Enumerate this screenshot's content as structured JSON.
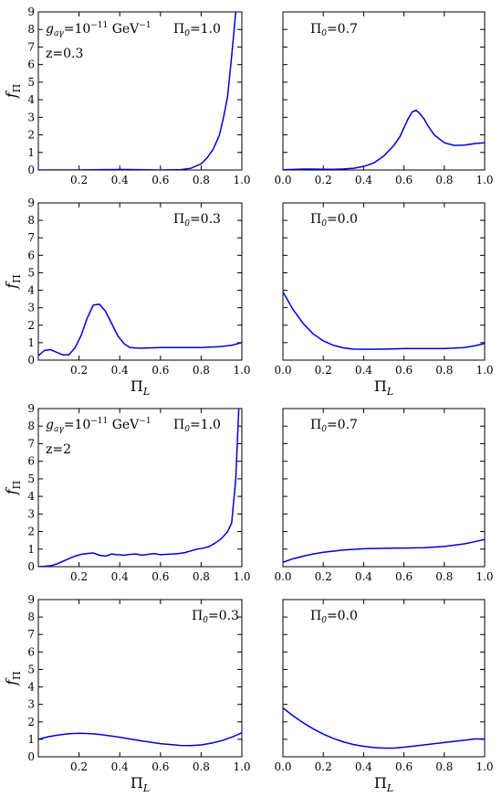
{
  "chart_data": [
    {
      "type": "line",
      "panel": "top-left",
      "ylabel": "f_Π",
      "xlabel": "",
      "xlim": [
        0,
        1
      ],
      "ylim": [
        0,
        9
      ],
      "x_ticks": [
        "0.2",
        "0.4",
        "0.6",
        "0.8",
        "1.0"
      ],
      "y_ticks": [
        "0",
        "1",
        "2",
        "3",
        "4",
        "5",
        "6",
        "7",
        "8",
        "9"
      ],
      "annotations": [
        {
          "text_main": "g",
          "text_sub": "aγ",
          "text_mid": "=10",
          "text_sup": "−11",
          "text_end": " GeV",
          "text_sup2": "−1"
        },
        {
          "text": "z=0.3"
        },
        {
          "text_main": "Π",
          "text_sub": "0",
          "text_end": "=1.0"
        }
      ],
      "series": [
        {
          "x": [
            0.0,
            0.1,
            0.2,
            0.3,
            0.4,
            0.5,
            0.6,
            0.7,
            0.75,
            0.8,
            0.83,
            0.86,
            0.89,
            0.91,
            0.93,
            0.95,
            0.97
          ],
          "values": [
            0.0,
            0.0,
            0.0,
            0.02,
            0.03,
            0.02,
            0.0,
            0.02,
            0.1,
            0.35,
            0.7,
            1.2,
            2.0,
            3.0,
            4.2,
            6.5,
            9.0
          ]
        }
      ]
    },
    {
      "type": "line",
      "panel": "top-right",
      "ylabel": "",
      "xlabel": "",
      "xlim": [
        0,
        1
      ],
      "ylim": [
        0,
        9
      ],
      "x_ticks": [
        "0.0",
        "0.2",
        "0.4",
        "0.6",
        "0.8",
        "1.0"
      ],
      "y_ticks": [],
      "annotations": [
        {
          "text_main": "Π",
          "text_sub": "0",
          "text_end": "=0.7"
        }
      ],
      "series": [
        {
          "x": [
            0.0,
            0.05,
            0.1,
            0.15,
            0.2,
            0.25,
            0.3,
            0.35,
            0.4,
            0.45,
            0.5,
            0.55,
            0.58,
            0.6,
            0.62,
            0.64,
            0.66,
            0.68,
            0.7,
            0.72,
            0.75,
            0.8,
            0.85,
            0.9,
            0.95,
            1.0
          ],
          "values": [
            0.02,
            0.03,
            0.05,
            0.05,
            0.04,
            0.04,
            0.06,
            0.1,
            0.2,
            0.4,
            0.8,
            1.4,
            1.9,
            2.4,
            2.9,
            3.3,
            3.4,
            3.2,
            2.9,
            2.5,
            2.0,
            1.55,
            1.4,
            1.42,
            1.5,
            1.55
          ]
        }
      ]
    },
    {
      "type": "line",
      "panel": "upper-middle-left",
      "ylabel": "f_Π",
      "xlabel": "Π_L",
      "xlim": [
        0,
        1
      ],
      "ylim": [
        0,
        9
      ],
      "x_ticks": [
        "0.2",
        "0.4",
        "0.6",
        "0.8",
        "1.0"
      ],
      "y_ticks": [
        "0",
        "1",
        "2",
        "3",
        "4",
        "5",
        "6",
        "7",
        "8",
        "9"
      ],
      "annotations": [
        {
          "text_main": "Π",
          "text_sub": "0",
          "text_end": "=0.3"
        }
      ],
      "series": [
        {
          "x": [
            0.0,
            0.03,
            0.06,
            0.09,
            0.12,
            0.15,
            0.18,
            0.21,
            0.24,
            0.27,
            0.3,
            0.33,
            0.36,
            0.39,
            0.42,
            0.45,
            0.5,
            0.55,
            0.6,
            0.7,
            0.8,
            0.9,
            0.95,
            1.0
          ],
          "values": [
            0.25,
            0.55,
            0.6,
            0.45,
            0.3,
            0.3,
            0.7,
            1.4,
            2.4,
            3.15,
            3.2,
            2.8,
            2.1,
            1.4,
            0.95,
            0.72,
            0.68,
            0.7,
            0.72,
            0.72,
            0.72,
            0.78,
            0.85,
            1.0
          ]
        }
      ]
    },
    {
      "type": "line",
      "panel": "upper-middle-right",
      "ylabel": "",
      "xlabel": "Π_L",
      "xlim": [
        0,
        1
      ],
      "ylim": [
        0,
        9
      ],
      "x_ticks": [
        "0.0",
        "0.2",
        "0.4",
        "0.6",
        "0.8",
        "1.0"
      ],
      "y_ticks": [],
      "annotations": [
        {
          "text_main": "Π",
          "text_sub": "0",
          "text_end": "=0.0"
        }
      ],
      "series": [
        {
          "x": [
            0.0,
            0.05,
            0.1,
            0.15,
            0.2,
            0.25,
            0.3,
            0.35,
            0.4,
            0.5,
            0.6,
            0.7,
            0.8,
            0.9,
            0.95,
            1.0
          ],
          "values": [
            3.9,
            2.9,
            2.1,
            1.5,
            1.1,
            0.85,
            0.7,
            0.63,
            0.62,
            0.63,
            0.66,
            0.66,
            0.66,
            0.72,
            0.82,
            0.95
          ]
        }
      ]
    },
    {
      "type": "line",
      "panel": "lower-middle-left",
      "ylabel": "f_Π",
      "xlabel": "",
      "xlim": [
        0,
        1
      ],
      "ylim": [
        0,
        9
      ],
      "x_ticks": [
        "0.2",
        "0.4",
        "0.6",
        "0.8",
        "1.0"
      ],
      "y_ticks": [
        "0",
        "1",
        "2",
        "3",
        "4",
        "5",
        "6",
        "7",
        "8",
        "9"
      ],
      "annotations": [
        {
          "text_main": "g",
          "text_sub": "aγ",
          "text_mid": "=10",
          "text_sup": "−11",
          "text_end": " GeV",
          "text_sup2": "−1"
        },
        {
          "text": "z=2"
        },
        {
          "text_main": "Π",
          "text_sub": "0",
          "text_end": "=1.0"
        }
      ],
      "series": [
        {
          "x": [
            0.0,
            0.03,
            0.06,
            0.09,
            0.12,
            0.15,
            0.18,
            0.21,
            0.24,
            0.27,
            0.3,
            0.33,
            0.36,
            0.39,
            0.42,
            0.45,
            0.48,
            0.51,
            0.54,
            0.57,
            0.6,
            0.63,
            0.66,
            0.69,
            0.72,
            0.75,
            0.78,
            0.81,
            0.84,
            0.87,
            0.9,
            0.93,
            0.95,
            0.97,
            0.985
          ],
          "values": [
            0.0,
            0.02,
            0.05,
            0.15,
            0.3,
            0.45,
            0.6,
            0.7,
            0.75,
            0.78,
            0.65,
            0.6,
            0.72,
            0.68,
            0.65,
            0.7,
            0.72,
            0.65,
            0.7,
            0.75,
            0.68,
            0.7,
            0.72,
            0.75,
            0.8,
            0.9,
            1.0,
            1.05,
            1.15,
            1.35,
            1.6,
            2.0,
            2.5,
            5.0,
            9.0
          ]
        }
      ]
    },
    {
      "type": "line",
      "panel": "lower-middle-right",
      "ylabel": "",
      "xlabel": "",
      "xlim": [
        0,
        1
      ],
      "ylim": [
        0,
        9
      ],
      "x_ticks": [
        "0.0",
        "0.2",
        "0.4",
        "0.6",
        "0.8",
        "1.0"
      ],
      "y_ticks": [],
      "annotations": [
        {
          "text_main": "Π",
          "text_sub": "0",
          "text_end": "=0.7"
        }
      ],
      "series": [
        {
          "x": [
            0.0,
            0.05,
            0.1,
            0.15,
            0.2,
            0.3,
            0.4,
            0.5,
            0.6,
            0.7,
            0.8,
            0.9,
            0.95,
            1.0
          ],
          "values": [
            0.25,
            0.45,
            0.6,
            0.72,
            0.82,
            0.95,
            1.02,
            1.05,
            1.06,
            1.08,
            1.15,
            1.3,
            1.42,
            1.55
          ]
        }
      ]
    },
    {
      "type": "line",
      "panel": "bottom-left",
      "ylabel": "f_Π",
      "xlabel": "Π_L",
      "xlim": [
        0,
        1
      ],
      "ylim": [
        0,
        9
      ],
      "x_ticks": [
        "0.2",
        "0.4",
        "0.6",
        "0.8",
        "1.0"
      ],
      "y_ticks": [
        "0",
        "1",
        "2",
        "3",
        "4",
        "5",
        "6",
        "7",
        "8",
        "9"
      ],
      "annotations": [
        {
          "text_main": "Π",
          "text_sub": "0",
          "text_end": "=0.3"
        }
      ],
      "series": [
        {
          "x": [
            0.0,
            0.05,
            0.1,
            0.15,
            0.2,
            0.25,
            0.3,
            0.4,
            0.5,
            0.6,
            0.7,
            0.75,
            0.8,
            0.85,
            0.9,
            0.95,
            1.0
          ],
          "values": [
            1.0,
            1.15,
            1.25,
            1.32,
            1.35,
            1.33,
            1.28,
            1.12,
            0.92,
            0.75,
            0.65,
            0.64,
            0.68,
            0.78,
            0.92,
            1.12,
            1.38
          ]
        }
      ]
    },
    {
      "type": "line",
      "panel": "bottom-right",
      "ylabel": "",
      "xlabel": "Π_L",
      "xlim": [
        0,
        1
      ],
      "ylim": [
        0,
        9
      ],
      "x_ticks": [
        "0.0",
        "0.2",
        "0.4",
        "0.6",
        "0.8",
        "1.0"
      ],
      "y_ticks": [],
      "annotations": [
        {
          "text_main": "Π",
          "text_sub": "0",
          "text_end": "=0.0"
        }
      ],
      "series": [
        {
          "x": [
            0.0,
            0.05,
            0.1,
            0.15,
            0.2,
            0.25,
            0.3,
            0.35,
            0.4,
            0.45,
            0.5,
            0.55,
            0.6,
            0.7,
            0.8,
            0.9,
            0.95,
            1.0
          ],
          "values": [
            2.8,
            2.35,
            1.95,
            1.6,
            1.3,
            1.05,
            0.85,
            0.7,
            0.6,
            0.53,
            0.5,
            0.5,
            0.55,
            0.68,
            0.82,
            0.95,
            1.02,
            1.02
          ]
        }
      ]
    }
  ],
  "colors": {
    "curve": "#0000dd",
    "axes": "#000000",
    "background": "#ffffff"
  }
}
